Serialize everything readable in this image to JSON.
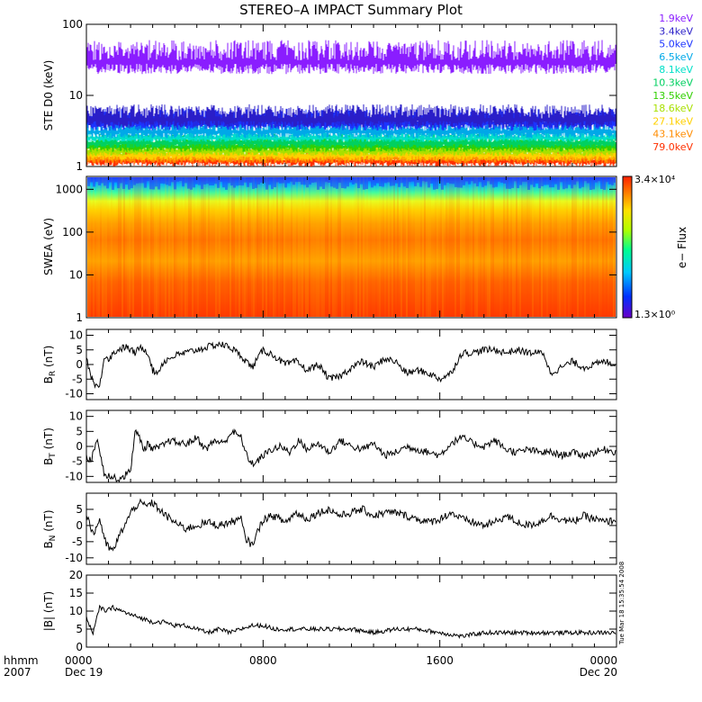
{
  "title": "STEREO–A IMPACT Summary Plot",
  "timestamp": "Tue Mar 18 15:35:54 2008",
  "time_axis": {
    "label_top": "hhmm",
    "label_bottom": "2007",
    "ticks": [
      {
        "label": "0000",
        "date": "Dec 19",
        "hours": 0
      },
      {
        "label": "0800",
        "date": "",
        "hours": 8
      },
      {
        "label": "1600",
        "date": "",
        "hours": 16
      },
      {
        "label": "0000",
        "date": "Dec 20",
        "hours": 24
      }
    ]
  },
  "colors": {
    "ste": [
      "#8a1dff",
      "#2a1ec8",
      "#1b33ff",
      "#00a8e8",
      "#00e0c8",
      "#00d060",
      "#30d000",
      "#a8e000",
      "#ffd000",
      "#ff8c00",
      "#ff3000"
    ],
    "trace": "#000000",
    "colorbar": [
      "#6a00c8",
      "#0030ff",
      "#00c8ff",
      "#00ff90",
      "#b0ff00",
      "#ffe000",
      "#ff8000",
      "#ff2000"
    ]
  },
  "chart_data": [
    {
      "type": "line",
      "panel": "ste",
      "ylabel": "STE D0 (keV)",
      "yscale": "log",
      "ylim": [
        1,
        100
      ],
      "yticks": [
        "1",
        "10",
        "100"
      ],
      "series": [
        {
          "name": "1.9keV",
          "range": [
            20,
            60
          ]
        },
        {
          "name": "3.4keV",
          "range": [
            3.5,
            7.5
          ]
        },
        {
          "name": "5.0keV",
          "range": [
            3.2,
            6.5
          ]
        },
        {
          "name": "6.5keV",
          "range": [
            2.5,
            4.5
          ]
        },
        {
          "name": "8.1keV",
          "range": [
            2.2,
            3.2
          ]
        },
        {
          "name": "10.3keV",
          "range": [
            1.8,
            2.9
          ]
        },
        {
          "name": "13.5keV",
          "range": [
            1.6,
            2.6
          ]
        },
        {
          "name": "18.6keV",
          "range": [
            1.4,
            2.2
          ]
        },
        {
          "name": "27.1keV",
          "range": [
            1.2,
            2.0
          ]
        },
        {
          "name": "43.1keV",
          "range": [
            1.1,
            1.8
          ]
        },
        {
          "name": "79.0keV",
          "range": [
            1.0,
            1.6
          ]
        }
      ]
    },
    {
      "type": "heatmap",
      "panel": "swea",
      "ylabel": "SWEA (eV)",
      "yscale": "log",
      "ylim": [
        1,
        2000
      ],
      "yticks": [
        "1",
        "10",
        "100",
        "1000"
      ],
      "colorbar": {
        "label": "e− Flux",
        "max": "3.4×10⁴",
        "min": "1.3×10⁰"
      }
    },
    {
      "type": "line",
      "panel": "br",
      "ylabel": "B_R (nT)",
      "ylim": [
        -12,
        12
      ],
      "yticks": [
        "-10",
        "-5",
        "0",
        "5",
        "10"
      ],
      "x": [
        0,
        0.3,
        0.6,
        0.8,
        1,
        1.4,
        1.8,
        2.2,
        2.5,
        2.8,
        3,
        3.2,
        3.5,
        4,
        4.5,
        5,
        5.5,
        6,
        6.5,
        7,
        7.5,
        8,
        8.5,
        9,
        9.5,
        10,
        10.5,
        11,
        11.5,
        12,
        12.5,
        13,
        13.5,
        14,
        14.5,
        15,
        15.5,
        16,
        16.5,
        17,
        17.5,
        18,
        18.5,
        19,
        19.5,
        20,
        20.5,
        20.7,
        21,
        21.5,
        22,
        22.5,
        23,
        23.5,
        24
      ],
      "values": [
        2,
        -6,
        -8,
        3,
        2,
        5,
        6,
        4,
        6,
        4,
        -2,
        -3,
        1,
        3,
        4,
        5,
        6,
        7,
        6,
        3,
        -1,
        5,
        3,
        0,
        1,
        -2,
        0,
        -5,
        -4,
        -1,
        1,
        -1,
        2,
        1,
        -3,
        -2,
        -3,
        -5,
        -3,
        4,
        4,
        5,
        5,
        4,
        5,
        4,
        4,
        4,
        -3,
        -1,
        1,
        -1,
        0,
        1,
        0
      ]
    },
    {
      "type": "line",
      "panel": "bt",
      "ylabel": "B_T (nT)",
      "ylim": [
        -12,
        12
      ],
      "yticks": [
        "-10",
        "-5",
        "0",
        "5",
        "10"
      ],
      "x": [
        0,
        0.2,
        0.5,
        0.8,
        1.1,
        1.4,
        1.7,
        2,
        2.2,
        2.4,
        2.6,
        2.8,
        3,
        3.4,
        3.8,
        4.2,
        4.6,
        5,
        5.4,
        5.8,
        6.2,
        6.6,
        7,
        7.3,
        7.6,
        8,
        8.4,
        8.8,
        9.2,
        9.6,
        10,
        10.5,
        11,
        11.5,
        12,
        12.5,
        13,
        13.5,
        14,
        14.5,
        15,
        15.5,
        16,
        16.5,
        17,
        17.5,
        18,
        18.5,
        19,
        19.5,
        20,
        20.5,
        21,
        21.5,
        22,
        22.5,
        23,
        23.5,
        24
      ],
      "values": [
        -3,
        -5,
        3,
        -9,
        -10,
        -11,
        -10,
        -8,
        5,
        3,
        -1,
        1,
        -1,
        0,
        2,
        1,
        1,
        3,
        -1,
        2,
        1,
        5,
        3,
        -4,
        -6,
        -3,
        -1,
        0,
        -2,
        2,
        -1,
        1,
        -2,
        2,
        0,
        -1,
        1,
        -3,
        -2,
        0,
        -1,
        -2,
        -3,
        1,
        3,
        1,
        0,
        2,
        -1,
        -2,
        -1,
        -2,
        -2,
        -3,
        -2,
        -3,
        -2,
        -1,
        -2
      ]
    },
    {
      "type": "line",
      "panel": "bn",
      "ylabel": "B_N (nT)",
      "ylim": [
        -12,
        10
      ],
      "yticks": [
        "-10",
        "-5",
        "0",
        "5"
      ],
      "x": [
        0,
        0.3,
        0.6,
        0.9,
        1.2,
        1.5,
        1.8,
        2.1,
        2.4,
        2.7,
        3,
        3.3,
        3.6,
        4,
        4.5,
        5,
        5.5,
        6,
        6.5,
        7,
        7.2,
        7.5,
        8,
        8.5,
        9,
        9.5,
        10,
        10.5,
        11,
        11.5,
        12,
        12.5,
        13,
        13.5,
        14,
        14.5,
        15,
        15.5,
        16,
        16.5,
        17,
        17.5,
        18,
        18.5,
        19,
        19.5,
        20,
        20.5,
        21,
        21.5,
        22,
        22.5,
        23,
        23.5,
        24
      ],
      "values": [
        4,
        -3,
        2,
        -6,
        -8,
        -3,
        1,
        5,
        7,
        6,
        7,
        5,
        3,
        1,
        -1,
        0,
        1,
        0,
        1,
        2,
        -4,
        -6,
        2,
        3,
        1,
        4,
        2,
        4,
        5,
        3,
        4,
        5,
        3,
        4,
        4,
        3,
        2,
        1,
        2,
        4,
        2,
        1,
        0,
        1,
        3,
        1,
        0,
        1,
        3,
        2,
        1,
        3,
        2,
        1,
        2
      ]
    },
    {
      "type": "line",
      "panel": "bmag",
      "ylabel": "|B| (nT)",
      "ylim": [
        0,
        20
      ],
      "yticks": [
        "0",
        "5",
        "10",
        "15",
        "20"
      ],
      "x": [
        0,
        0.3,
        0.6,
        0.9,
        1.2,
        1.6,
        2,
        2.5,
        3,
        3.5,
        4,
        4.5,
        5,
        5.5,
        6,
        6.5,
        7,
        7.5,
        8,
        8.5,
        9,
        10,
        11,
        12,
        13,
        14,
        15,
        16,
        17,
        18,
        19,
        20,
        21,
        22,
        23,
        24
      ],
      "values": [
        8,
        4,
        11,
        10,
        11,
        10,
        9,
        8,
        7,
        7,
        6,
        6,
        5,
        4,
        5,
        4,
        5,
        6,
        6,
        5,
        5,
        5,
        5,
        5,
        4,
        5,
        5,
        4,
        3,
        4,
        4,
        4,
        4,
        4,
        4,
        4
      ]
    }
  ]
}
